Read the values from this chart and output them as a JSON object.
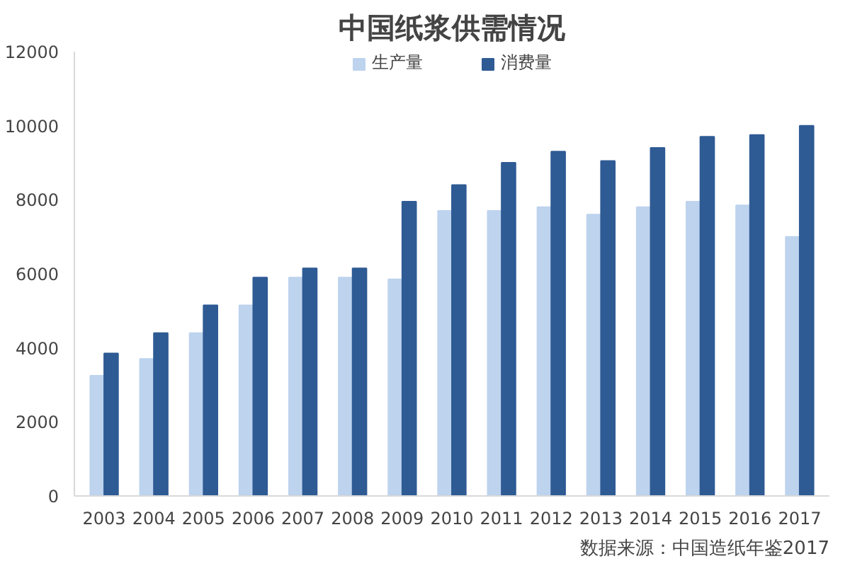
{
  "chart_data": {
    "type": "bar",
    "title": "中国纸浆供需情况",
    "categories": [
      "2003",
      "2004",
      "2005",
      "2006",
      "2007",
      "2008",
      "2009",
      "2010",
      "2011",
      "2012",
      "2013",
      "2014",
      "2015",
      "2016",
      "2017"
    ],
    "series": [
      {
        "name": "生产量",
        "color": "#bdd3ee",
        "values": [
          3250,
          3700,
          4400,
          5150,
          5900,
          5900,
          5850,
          7700,
          7700,
          7800,
          7600,
          7800,
          7950,
          7850,
          7000
        ]
      },
      {
        "name": "消费量",
        "color": "#2f5b94",
        "values": [
          3850,
          4400,
          5150,
          5900,
          6150,
          6150,
          7950,
          8400,
          9000,
          9300,
          9050,
          9400,
          9700,
          9750,
          10000
        ]
      }
    ],
    "ylim": [
      0,
      12000
    ],
    "yticks": [
      0,
      2000,
      4000,
      6000,
      8000,
      10000,
      12000
    ],
    "grid": false,
    "legend": "top",
    "annotations": [
      "数据来源：中国造纸年鉴2017"
    ]
  }
}
